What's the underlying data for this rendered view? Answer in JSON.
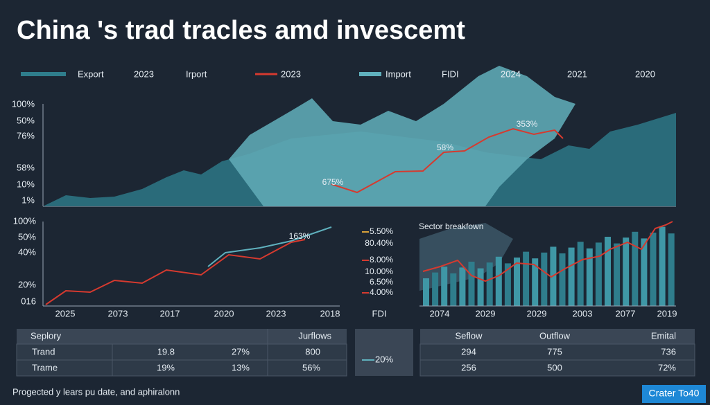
{
  "header": {
    "title": "China 's trad tracles amd invescemt"
  },
  "legend": [
    "Export",
    "2023",
    "Irport",
    "2023",
    "Import",
    "FIDI",
    "2024",
    "2021",
    "2020"
  ],
  "top_chart": {
    "y_labels": [
      "100%",
      "50%",
      "76%",
      "58%",
      "10%",
      "1%"
    ],
    "annotations": [
      "353%",
      "58%",
      "675%"
    ]
  },
  "left_chart": {
    "y_labels": [
      "100%",
      "50%",
      "40%",
      "20%",
      "016"
    ],
    "x_labels": [
      "2025",
      "2073",
      "2017",
      "2020",
      "2023",
      "2018"
    ],
    "annotation": "163%"
  },
  "middle_legend": {
    "items": [
      "5.50%",
      "80.40%",
      "8.00%",
      "10.00%",
      "6.50%",
      "4.00%"
    ],
    "label": "FDI"
  },
  "right_chart": {
    "title": "Sector breakfown",
    "x_labels": [
      "2074",
      "2029",
      "2029",
      "2003",
      "2077",
      "2019"
    ]
  },
  "left_table": {
    "header": [
      "Seplory",
      "Jurflows"
    ],
    "rows": [
      [
        "Trand",
        "19.8",
        "27%",
        "800"
      ],
      [
        "Trame",
        "19%",
        "13%",
        "56%"
      ]
    ]
  },
  "middle_box": "20%",
  "right_table": {
    "header": [
      "Seflow",
      "Outflow",
      "Emital"
    ],
    "rows": [
      [
        "294",
        "775",
        "736"
      ],
      [
        "256",
        "500",
        "72%"
      ]
    ]
  },
  "footer": {
    "note": "Progected y lears pu date, and aphiralonn",
    "button": "Crater To40"
  }
}
